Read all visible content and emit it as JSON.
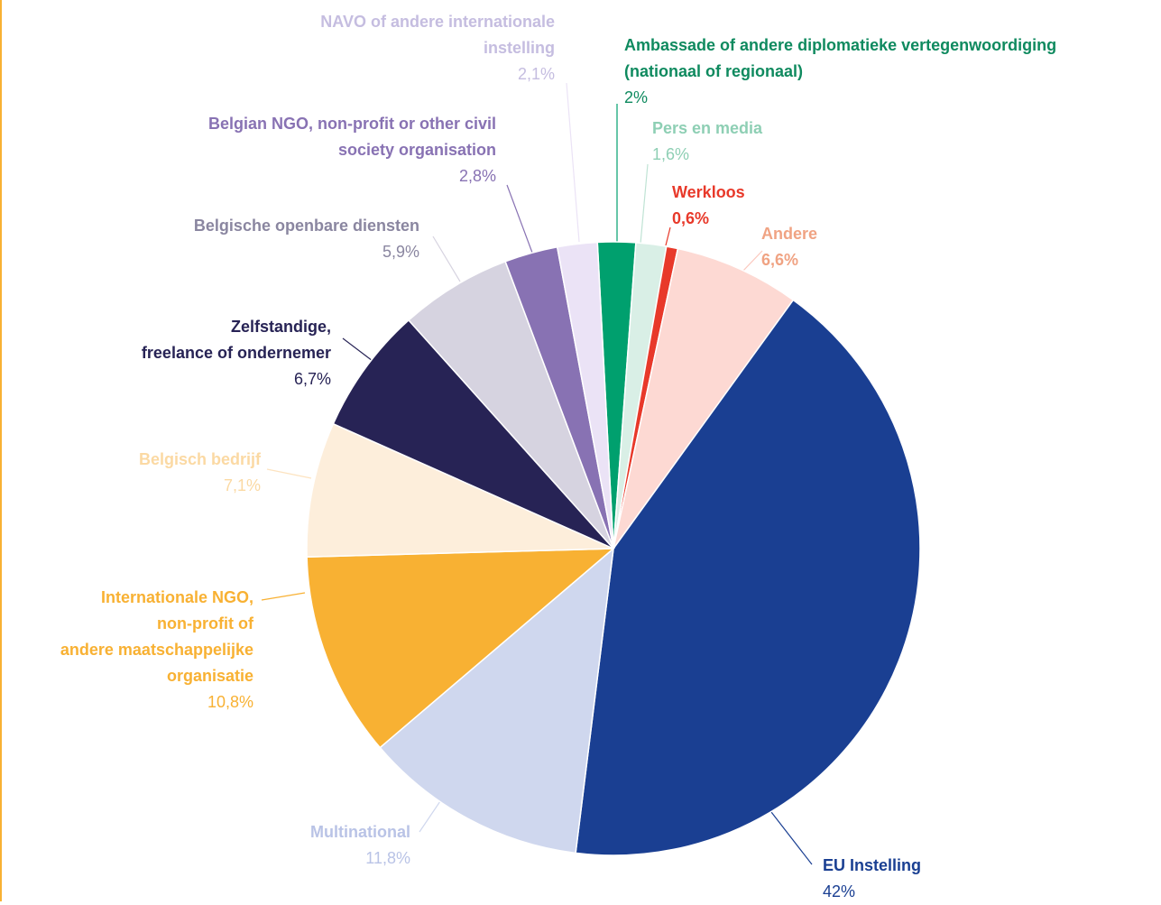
{
  "chart_data": {
    "type": "pie",
    "categories": [
      "Ambassade of andere diplomatieke vertegenwoordiging\n(nationaal of regionaal)",
      "Pers en media",
      "Werkloos",
      "Andere",
      "EU Instelling",
      "Multinational",
      "Internationale NGO,\nnon-profit of\nandere maatschappelijke\norganisatie",
      "Belgisch bedrijf",
      "Zelfstandige,\nfreelance of ondernemer",
      "Belgische openbare diensten",
      "Belgian NGO, non-profit or other civil\nsociety organisation",
      "NAVO of andere internationale\ninstelling"
    ],
    "values": [
      2,
      1.6,
      0.6,
      6.6,
      42,
      11.8,
      10.8,
      7.1,
      6.7,
      5.9,
      2.8,
      2.1
    ],
    "value_labels": [
      "2%",
      "1,6%",
      "0,6%",
      "6,6%",
      "42%",
      "11,8%",
      "10,8%",
      "7,1%",
      "6,7%",
      "5,9%",
      "2,8%",
      "2,1%"
    ],
    "colors": [
      "#00a06e",
      "#d9efe6",
      "#e8392a",
      "#fdd9d3",
      "#1a3f92",
      "#cfd7ee",
      "#f8b133",
      "#fdeedb",
      "#272355",
      "#d6d3e0",
      "#8872b3",
      "#ebe3f6"
    ]
  }
}
